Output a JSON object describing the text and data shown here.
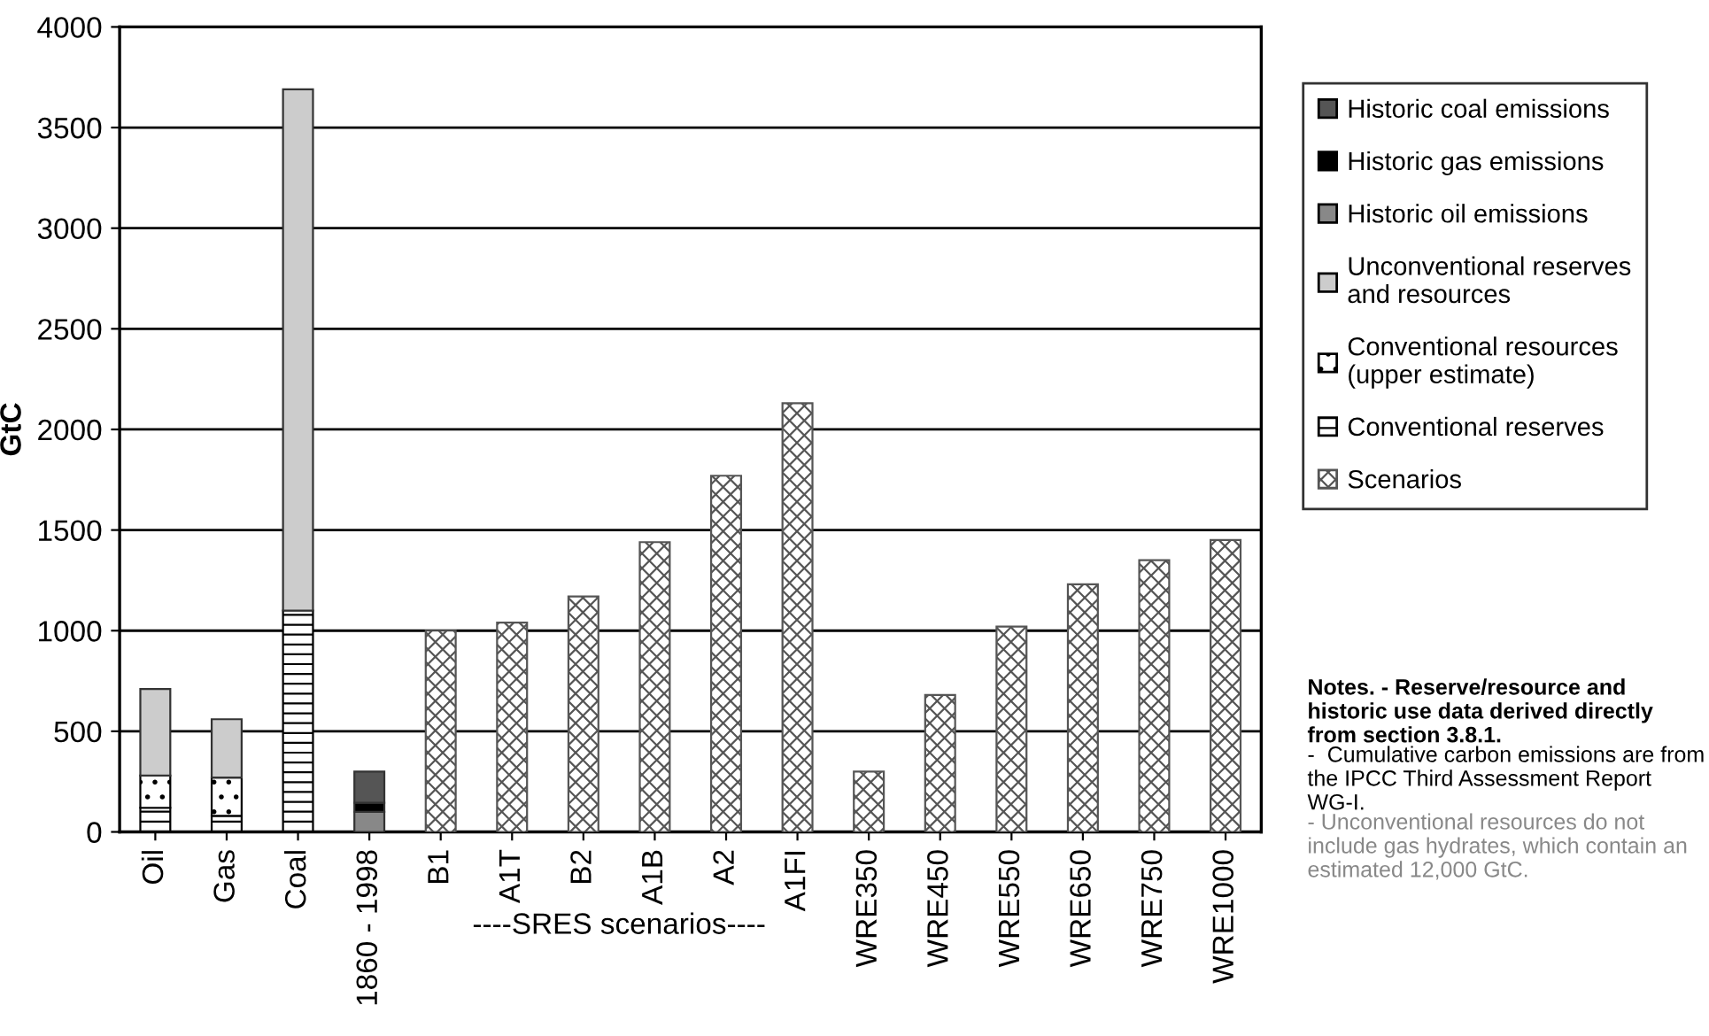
{
  "chart_data": {
    "type": "bar",
    "stacked": true,
    "ylabel": "GtC",
    "categories": [
      "Oil",
      "Gas",
      "Coal",
      "1860 - 1998",
      "B1",
      "A1T",
      "B2",
      "A1B",
      "A2",
      "A1FI",
      "WRE350",
      "WRE450",
      "WRE550",
      "WRE650",
      "WRE750",
      "WRE1000"
    ],
    "series": [
      {
        "name": "Scenarios",
        "color": "#555555",
        "values": [
          null,
          null,
          null,
          null,
          1000,
          1040,
          1170,
          1440,
          1770,
          2130,
          300,
          680,
          1020,
          1230,
          1350,
          1450
        ]
      },
      {
        "name": "Conventional reserves",
        "color": "#000000",
        "values": [
          120,
          80,
          1100,
          null,
          null,
          null,
          null,
          null,
          null,
          null,
          null,
          null,
          null,
          null,
          null,
          null
        ]
      },
      {
        "name": "Conventional resources (upper estimate)",
        "color": "#000000",
        "values": [
          160,
          190,
          null,
          null,
          null,
          null,
          null,
          null,
          null,
          null,
          null,
          null,
          null,
          null,
          null,
          null
        ]
      },
      {
        "name": "Unconventional reserves and resources",
        "color": "#cccccc",
        "values": [
          430,
          290,
          2590,
          null,
          null,
          null,
          null,
          null,
          null,
          null,
          null,
          null,
          null,
          null,
          null,
          null
        ]
      },
      {
        "name": "Historic oil emissions",
        "color": "#888888",
        "values": [
          null,
          null,
          null,
          100,
          null,
          null,
          null,
          null,
          null,
          null,
          null,
          null,
          null,
          null,
          null,
          null
        ]
      },
      {
        "name": "Historic gas emissions",
        "color": "#000000",
        "values": [
          null,
          null,
          null,
          45,
          null,
          null,
          null,
          null,
          null,
          null,
          null,
          null,
          null,
          null,
          null,
          null
        ]
      },
      {
        "name": "Historic coal emissions",
        "color": "#555555",
        "values": [
          null,
          null,
          null,
          155,
          null,
          null,
          null,
          null,
          null,
          null,
          null,
          null,
          null,
          null,
          null,
          null
        ]
      }
    ],
    "ylim": [
      0,
      4000
    ],
    "yticks": [
      0,
      500,
      1000,
      1500,
      2000,
      2500,
      3000,
      3500,
      4000
    ],
    "grid": "y",
    "legend": "right",
    "annotations": [
      "----SRES scenarios----",
      "Notes. - Reserve/resource and historic use data derived directly from section 3.8.1.",
      "-  Cumulative carbon emissions are from the IPCC Third Assessment Report WG-I.",
      "- Unconventional resources do not include gas hydrates, which contain an estimated 12,000 GtC."
    ]
  }
}
